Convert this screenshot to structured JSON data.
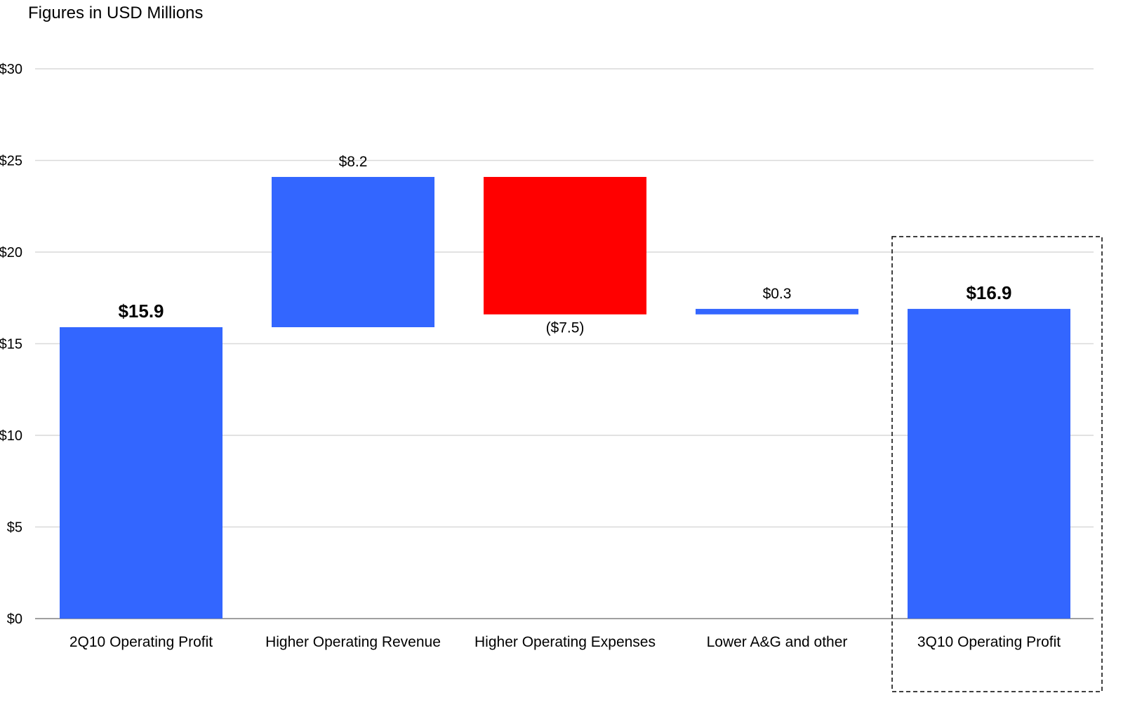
{
  "subtitle": "Figures in USD Millions",
  "chart_data": {
    "type": "bar",
    "variant": "waterfall",
    "title": "",
    "subtitle": "Figures in USD Millions",
    "xlabel": "",
    "ylabel": "",
    "ylim": [
      0,
      30
    ],
    "yticks": [
      0,
      5,
      10,
      15,
      20,
      25,
      30
    ],
    "ytick_labels": [
      "$0",
      "$5",
      "$10",
      "$15",
      "$20",
      "$25",
      "$30"
    ],
    "grid": true,
    "legend": "none",
    "categories": [
      "2Q10 Operating Profit",
      "Higher Operating Revenue",
      "Higher Operating Expenses",
      "Lower A&G and other",
      "3Q10 Operating Profit"
    ],
    "values": [
      15.9,
      8.2,
      -7.5,
      0.3,
      16.9
    ],
    "kinds": [
      "total",
      "delta",
      "delta",
      "delta",
      "total"
    ],
    "data_labels": [
      "$15.9",
      "$8.2",
      "($7.5)",
      "$0.3",
      "$16.9"
    ],
    "highlighted_category": "3Q10 Operating Profit",
    "colors": {
      "positive": "#3366ff",
      "negative": "#ff0000",
      "grid": "#d9d9d9",
      "axis": "#808080",
      "highlight_border": "#000000"
    }
  }
}
